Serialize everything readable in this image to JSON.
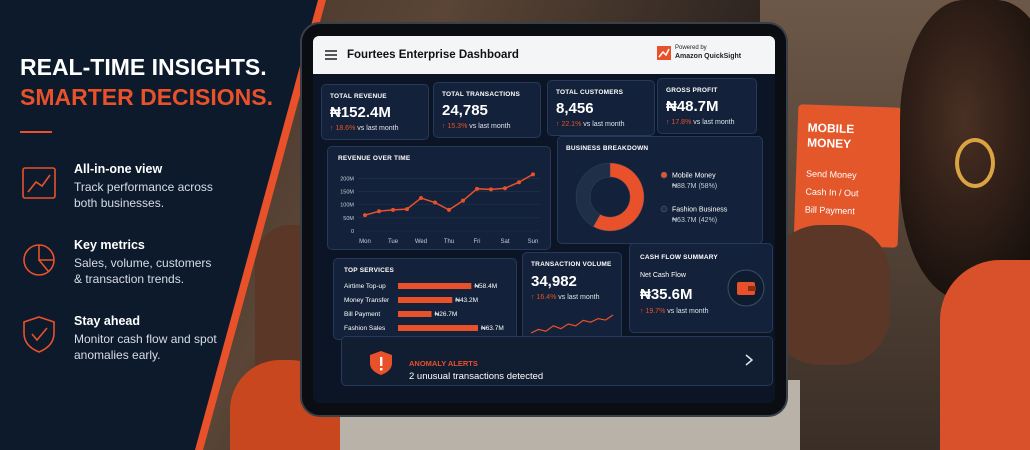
{
  "hero": {
    "title_line1": "REAL-TIME INSIGHTS.",
    "title_line2": "SMARTER DECISIONS.",
    "features": [
      {
        "title": "All-in-one view",
        "text": "Track performance across both businesses."
      },
      {
        "title": "Key metrics",
        "text": "Sales, volume, customers & transaction trends."
      },
      {
        "title": "Stay ahead",
        "text": "Monitor cash flow and spot anomalies early."
      }
    ]
  },
  "sign": {
    "title": "MOBILE MONEY",
    "items": [
      "Send Money",
      "Cash In / Out",
      "Bill Payment"
    ]
  },
  "dashboard": {
    "title": "Fourtees Enterprise Dashboard",
    "powered_by": "Powered by",
    "powered_brand": "Amazon QuickSight",
    "kpis": [
      {
        "label": "TOTAL REVENUE",
        "value": "₦152.4M",
        "change": "18.6%",
        "suffix": "vs last month"
      },
      {
        "label": "TOTAL TRANSACTIONS",
        "value": "24,785",
        "change": "15.3%",
        "suffix": "vs last month"
      },
      {
        "label": "TOTAL CUSTOMERS",
        "value": "8,456",
        "change": "22.1%",
        "suffix": "vs last month"
      },
      {
        "label": "GROSS PROFIT",
        "value": "₦48.7M",
        "change": "17.8%",
        "suffix": "vs last month"
      }
    ],
    "revenue_chart": {
      "type": "line",
      "title": "REVENUE OVER TIME",
      "color": "#e8512a",
      "categories": [
        "Mon",
        null,
        "Tue",
        null,
        "Wed",
        null,
        "Thu",
        null,
        "Fri",
        null,
        "Sat",
        null,
        "Sun"
      ],
      "values": [
        60000000,
        75000000,
        80000000,
        83000000,
        125000000,
        108000000,
        80000000,
        115000000,
        160000000,
        158000000,
        162000000,
        185000000,
        215000000
      ],
      "ylim": [
        0,
        220000000
      ],
      "yticks": [
        0,
        {
          "value": 50000000,
          "label": "50M"
        },
        {
          "value": 100000000,
          "label": "100M"
        },
        {
          "value": 150000000,
          "label": "150M"
        },
        {
          "value": 200000000,
          "label": "200M"
        }
      ]
    },
    "breakdown": {
      "type": "pie",
      "title": "BUSINESS BREAKDOWN",
      "series": [
        {
          "name": "Mobile Money",
          "color": "#e8512a",
          "values": [
            88700000
          ],
          "value_labels": [
            "₦88.7M (58%)"
          ]
        },
        {
          "name": "Fashion Business",
          "color": "#1e2f47",
          "values": [
            63700000
          ],
          "value_labels": [
            "₦63.7M (42%)"
          ]
        }
      ]
    },
    "top_services": {
      "type": "bar",
      "title": "TOP SERVICES",
      "color": "#e8512a",
      "categories": [
        "Airtime Top-up",
        "Money Transfer",
        "Bill Payment",
        "Fashion Sales"
      ],
      "values": [
        58400000,
        43200000,
        26700000,
        63700000
      ],
      "value_labels": [
        "₦58.4M",
        "₦43.2M",
        "₦26.7M",
        "₦63.7M"
      ]
    },
    "transaction_volume": {
      "type": "line",
      "title": "TRANSACTION VOLUME",
      "value": "34,982",
      "change": "16.4%",
      "suffix": "vs last month",
      "color": "#e8512a",
      "values": [
        3,
        4,
        3.5,
        5,
        4.2,
        5.5,
        5,
        6.5,
        6,
        7,
        6.6,
        8
      ]
    },
    "cash_flow": {
      "title": "CASH FLOW SUMMARY",
      "label": "Net Cash Flow",
      "value": "₦35.6M",
      "change": "19.7%",
      "suffix": "vs last month"
    },
    "alert": {
      "title": "ANOMALY ALERTS",
      "text": "2 unusual transactions detected"
    }
  }
}
